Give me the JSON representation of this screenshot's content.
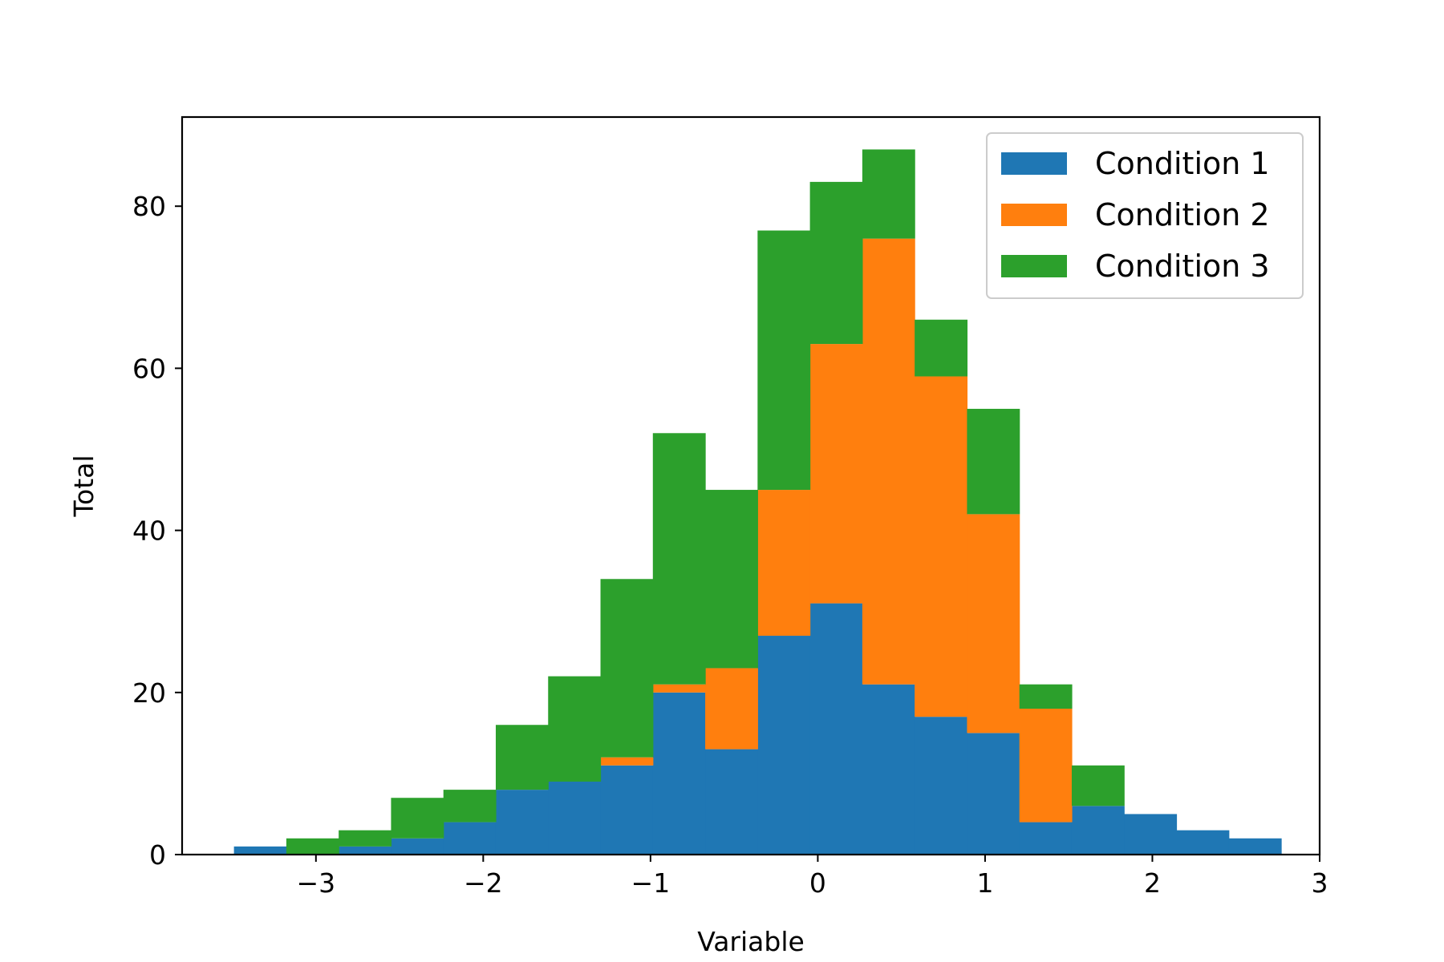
{
  "chart_data": {
    "type": "bar",
    "subtype": "stacked-histogram",
    "title": "",
    "xlabel": "Variable",
    "ylabel": "Total",
    "xlim": [
      -3.8,
      3.0
    ],
    "ylim": [
      0,
      91
    ],
    "x_ticks": [
      -3,
      -2,
      -1,
      0,
      1,
      2,
      3
    ],
    "x_tick_labels": [
      "−3",
      "−2",
      "−1",
      "0",
      "1",
      "2",
      "3"
    ],
    "y_ticks": [
      0,
      20,
      40,
      60,
      80
    ],
    "y_tick_labels": [
      "0",
      "20",
      "40",
      "60",
      "80"
    ],
    "bin_edges": [
      -3.49,
      -3.177,
      -2.864,
      -2.551,
      -2.238,
      -1.925,
      -1.612,
      -1.299,
      -0.986,
      -0.673,
      -0.36,
      -0.047,
      0.266,
      0.579,
      0.892,
      1.205,
      1.518,
      1.831,
      2.144,
      2.457,
      2.77
    ],
    "series": [
      {
        "name": "Condition 1",
        "color": "#1f77b4",
        "values": [
          1,
          0,
          1,
          2,
          4,
          8,
          9,
          11,
          20,
          13,
          27,
          31,
          21,
          17,
          15,
          4,
          6,
          5,
          3,
          2
        ]
      },
      {
        "name": "Condition 2",
        "color": "#ff7f0e",
        "values": [
          0,
          0,
          0,
          0,
          0,
          0,
          0,
          1,
          1,
          10,
          18,
          32,
          55,
          42,
          27,
          14,
          0,
          0,
          0,
          0
        ]
      },
      {
        "name": "Condition 3",
        "color": "#2ca02c",
        "values": [
          0,
          2,
          2,
          5,
          4,
          8,
          13,
          22,
          31,
          22,
          32,
          20,
          11,
          7,
          13,
          3,
          5,
          0,
          0,
          0
        ]
      }
    ],
    "grid": false,
    "legend_position": "top-right"
  }
}
